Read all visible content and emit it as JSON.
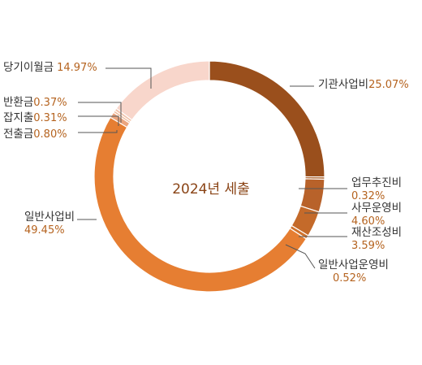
{
  "chart_data": {
    "type": "pie",
    "title": "2024년 세출",
    "slices": [
      {
        "name": "기관사업비",
        "value": 25.07,
        "label": "25.07%",
        "color": "#9a4f1c"
      },
      {
        "name": "업무추진비",
        "value": 0.32,
        "label": "0.32%",
        "color": "#a85a22"
      },
      {
        "name": "사무운영비",
        "value": 4.6,
        "label": "4.60%",
        "color": "#b8622a"
      },
      {
        "name": "재산조성비",
        "value": 3.59,
        "label": "3.59%",
        "color": "#c46a2a"
      },
      {
        "name": "일반사업운영비",
        "value": 0.52,
        "label": "0.52%",
        "color": "#d0732e"
      },
      {
        "name": "일반사업비",
        "value": 49.45,
        "label": "49.45%",
        "color": "#e67e32"
      },
      {
        "name": "전출금",
        "value": 0.8,
        "label": "0.80%",
        "color": "#eba57e"
      },
      {
        "name": "잡지출",
        "value": 0.31,
        "label": "0.31%",
        "color": "#efb896"
      },
      {
        "name": "반환금",
        "value": 0.37,
        "label": "0.37%",
        "color": "#f2c3aa"
      },
      {
        "name": "당기이월금",
        "value": 14.97,
        "label": "14.97%",
        "color": "#f8d6cb"
      }
    ]
  }
}
